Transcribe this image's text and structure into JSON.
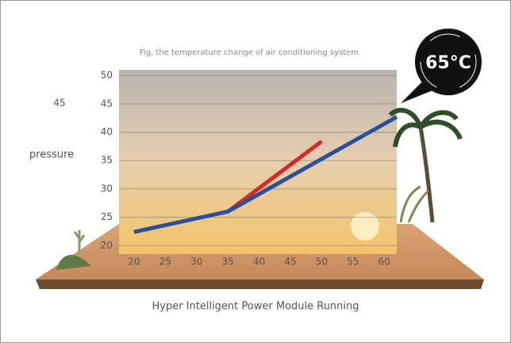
{
  "chart_data": {
    "type": "line",
    "title": "Fig. the temperature change of air conditioning system",
    "annotation": "45",
    "y_label": "pressure",
    "badge": "65°C",
    "caption": "Hyper Intelligent Power Module Running",
    "series": [
      {
        "color": "#d42a2a",
        "x": [
          35,
          50
        ],
        "values": [
          26,
          38.4
        ]
      },
      {
        "color": "#2a4f9e",
        "x": [
          20,
          35,
          62
        ],
        "values": [
          22.4,
          26,
          42.7
        ]
      }
    ],
    "xlim": [
      17.6,
      62
    ],
    "xticks": [
      20,
      25,
      30,
      35,
      40,
      45,
      50,
      55,
      60
    ],
    "ylim": [
      18.5,
      51
    ],
    "yticks": [
      20,
      25,
      30,
      35,
      40,
      45,
      50
    ],
    "grid": true
  }
}
